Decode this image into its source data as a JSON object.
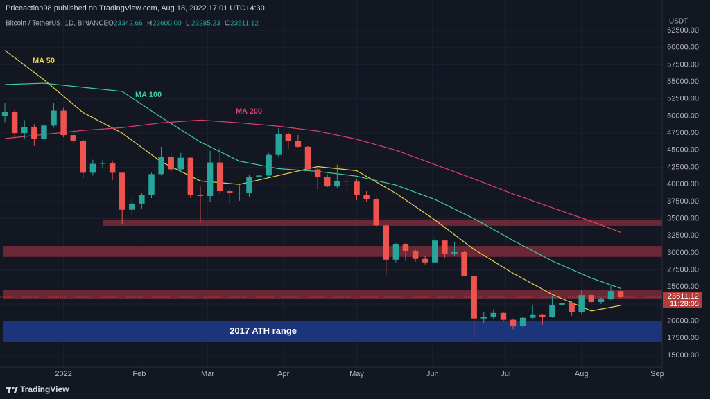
{
  "header": {
    "publisher": "Priceaction98 published on TradingView.com, Aug 18, 2022 17:01 UTC+4:30"
  },
  "chart_data": {
    "type": "candlestick",
    "symbol": "Bitcoin / TetherUS, 1D, BINANCE",
    "ohlc_labels": [
      {
        "key": "O",
        "value": {
          "value": 23342.66,
          "label": "23342.66"
        }
      },
      {
        "key": "H",
        "value": {
          "value": 23600,
          "label": "23600.00"
        }
      },
      {
        "key": "L",
        "value": {
          "value": 23285.23,
          "label": "23285.23"
        }
      },
      {
        "key": "C",
        "value": {
          "value": 23511.12,
          "label": "23511.12"
        }
      }
    ],
    "currency": "USDT",
    "categories": [
      null,
      null,
      null,
      null,
      null,
      null,
      null,
      null,
      null,
      null,
      null,
      null,
      null,
      null,
      null,
      null,
      null,
      null,
      null,
      null,
      null,
      null,
      null,
      null,
      null,
      null,
      null,
      null,
      null,
      null,
      null,
      null,
      null,
      null,
      null,
      null,
      null,
      null,
      null,
      null,
      null,
      null,
      null,
      null,
      null,
      null,
      null,
      null,
      null,
      null,
      null,
      null,
      null,
      null,
      null,
      null,
      null,
      null,
      null,
      null,
      null,
      null,
      null,
      null
    ],
    "open": [
      50000,
      50600,
      47500,
      48400,
      46700,
      48600,
      50800,
      47200,
      46400,
      41700,
      43000,
      43100,
      41700,
      36300,
      37200,
      38500,
      41500,
      44000,
      42200,
      43900,
      38400,
      38300,
      43200,
      39000,
      38700,
      38800,
      41100,
      41300,
      44300,
      47400,
      46300,
      45500,
      42200,
      41100,
      39700,
      40500,
      40400,
      38500,
      37800,
      34000,
      29000,
      31300,
      30300,
      29100,
      28600,
      31800,
      29900,
      30100,
      26600,
      20400,
      20600,
      21200,
      20200,
      19300,
      20500,
      20900,
      20600,
      22400,
      22600,
      21300,
      23800,
      22800,
      23200,
      24400
    ],
    "high": [
      51900,
      50900,
      49400,
      48800,
      49100,
      51900,
      51200,
      47900,
      46700,
      43600,
      43600,
      43500,
      41800,
      38000,
      38800,
      41700,
      45500,
      44500,
      44600,
      44000,
      39800,
      44900,
      45300,
      39500,
      39900,
      41400,
      42300,
      44600,
      48200,
      47700,
      47200,
      45600,
      42400,
      41500,
      42900,
      41500,
      40800,
      39000,
      38300,
      34300,
      31400,
      31400,
      30600,
      29500,
      32300,
      31900,
      31600,
      30300,
      26700,
      21300,
      21700,
      21400,
      20400,
      20700,
      22300,
      21000,
      23700,
      24200,
      22900,
      24500,
      24000,
      23500,
      25200,
      24500
    ],
    "low": [
      49100,
      46700,
      46600,
      45600,
      46400,
      48300,
      46900,
      45700,
      40900,
      41300,
      42300,
      40600,
      34100,
      35600,
      36400,
      38000,
      41300,
      41800,
      41700,
      38000,
      34400,
      37500,
      38600,
      37200,
      37600,
      38200,
      40800,
      41100,
      44100,
      45200,
      45400,
      42000,
      39300,
      39600,
      39400,
      38300,
      37700,
      37500,
      33700,
      26700,
      28600,
      28800,
      28700,
      28300,
      28500,
      29300,
      29500,
      26600,
      17600,
      19700,
      20300,
      19900,
      18800,
      19100,
      20300,
      19500,
      20500,
      22200,
      20800,
      21100,
      22600,
      22500,
      23100,
      23200
    ],
    "close": [
      50600,
      47500,
      48400,
      46700,
      48600,
      50800,
      47200,
      46400,
      41700,
      43000,
      43100,
      41700,
      36300,
      37200,
      38500,
      41500,
      44000,
      42200,
      43900,
      38400,
      38300,
      43200,
      39000,
      38700,
      38800,
      41100,
      41300,
      44300,
      47400,
      46300,
      45500,
      42200,
      41100,
      39700,
      40500,
      40400,
      38500,
      37800,
      34000,
      29000,
      31300,
      30300,
      29100,
      28600,
      31800,
      29900,
      30100,
      26600,
      20400,
      20600,
      21200,
      20200,
      19300,
      20500,
      20900,
      20600,
      22400,
      22600,
      21300,
      23800,
      22800,
      23200,
      24400,
      23500
    ],
    "up_color": "#26a69a",
    "down_color": "#ef5350",
    "xlim": [
      -0.5,
      67.25
    ],
    "xticks": [
      {
        "value": 6,
        "label": "2022"
      },
      {
        "value": 13.75,
        "label": "Feb"
      },
      {
        "value": 20.75,
        "label": "Mar"
      },
      {
        "value": 28.5,
        "label": "Apr"
      },
      {
        "value": 36,
        "label": "May"
      },
      {
        "value": 43.75,
        "label": "Jun"
      },
      {
        "value": 51.25,
        "label": "Jul"
      },
      {
        "value": 59,
        "label": "Aug"
      },
      {
        "value": 66.75,
        "label": "Sep"
      }
    ],
    "ylim": [
      13280,
      66960
    ],
    "yticks": [
      {
        "value": 15000,
        "label": "15000.00"
      },
      {
        "value": 17500,
        "label": "17500.00"
      },
      {
        "value": 20000,
        "label": "20000.00"
      },
      {
        "value": 22500,
        "label": "22500.00"
      },
      {
        "value": 25000,
        "label": "25000.00"
      },
      {
        "value": 27500,
        "label": "27500.00"
      },
      {
        "value": 30000,
        "label": "30000.00"
      },
      {
        "value": 32500,
        "label": "32500.00"
      },
      {
        "value": 35000,
        "label": "35000.00"
      },
      {
        "value": 37500,
        "label": "37500.00"
      },
      {
        "value": 40000,
        "label": "40000.00"
      },
      {
        "value": 42500,
        "label": "42500.00"
      },
      {
        "value": 45000,
        "label": "45000.00"
      },
      {
        "value": 47500,
        "label": "47500.00"
      },
      {
        "value": 50000,
        "label": "50000.00"
      },
      {
        "value": 52500,
        "label": "52500.00"
      },
      {
        "value": 55000,
        "label": "55000.00"
      },
      {
        "value": 57500,
        "label": "57500.00"
      },
      {
        "value": 60000,
        "label": "60000.00"
      },
      {
        "value": 62500,
        "label": "62500.00"
      }
    ],
    "grid": true,
    "moving_averages": [
      {
        "name": "MA 50",
        "color": "#e8d44d",
        "x": [
          0,
          4,
          8,
          12,
          16,
          20,
          24,
          28,
          32,
          36,
          40,
          44,
          48,
          52,
          56,
          60,
          63
        ],
        "values": [
          59600,
          55300,
          50500,
          47500,
          43300,
          40500,
          40000,
          41300,
          42600,
          42000,
          38700,
          34800,
          30500,
          27000,
          23900,
          21500,
          22300
        ]
      },
      {
        "name": "MA 100",
        "color": "#3ecf9e",
        "x": [
          0,
          4,
          8,
          12,
          16,
          20,
          24,
          28,
          32,
          36,
          40,
          44,
          48,
          52,
          56,
          60,
          63
        ],
        "values": [
          54600,
          54800,
          54200,
          53600,
          49800,
          46200,
          43400,
          42300,
          41900,
          41200,
          39900,
          37800,
          35000,
          31800,
          28800,
          26300,
          24800
        ]
      },
      {
        "name": "MA 200",
        "color": "#e0406e",
        "x": [
          0,
          4,
          8,
          12,
          16,
          20,
          24,
          28,
          32,
          36,
          40,
          44,
          48,
          52,
          56,
          60,
          63
        ],
        "values": [
          46700,
          47300,
          47900,
          48300,
          49000,
          49400,
          49000,
          48500,
          47800,
          46600,
          45000,
          42900,
          40800,
          38600,
          36600,
          34600,
          33000
        ]
      }
    ],
    "zones": [
      {
        "from": 10,
        "low": 33950,
        "high": 34860,
        "color": "#7a2a3a"
      },
      {
        "from": -0.2,
        "low": 29400,
        "high": 31000,
        "color": "#7a2a3a"
      },
      {
        "from": -0.2,
        "low": 23300,
        "high": 24620,
        "color": "#7a2a3a"
      },
      {
        "from": -0.2,
        "low": 17030,
        "high": 19960,
        "color": "#1f3a8a",
        "label": "2017 ATH range"
      }
    ],
    "last_price": 23511.12,
    "countdown": "11:28:05"
  },
  "footer": {
    "brand": "TradingView"
  }
}
